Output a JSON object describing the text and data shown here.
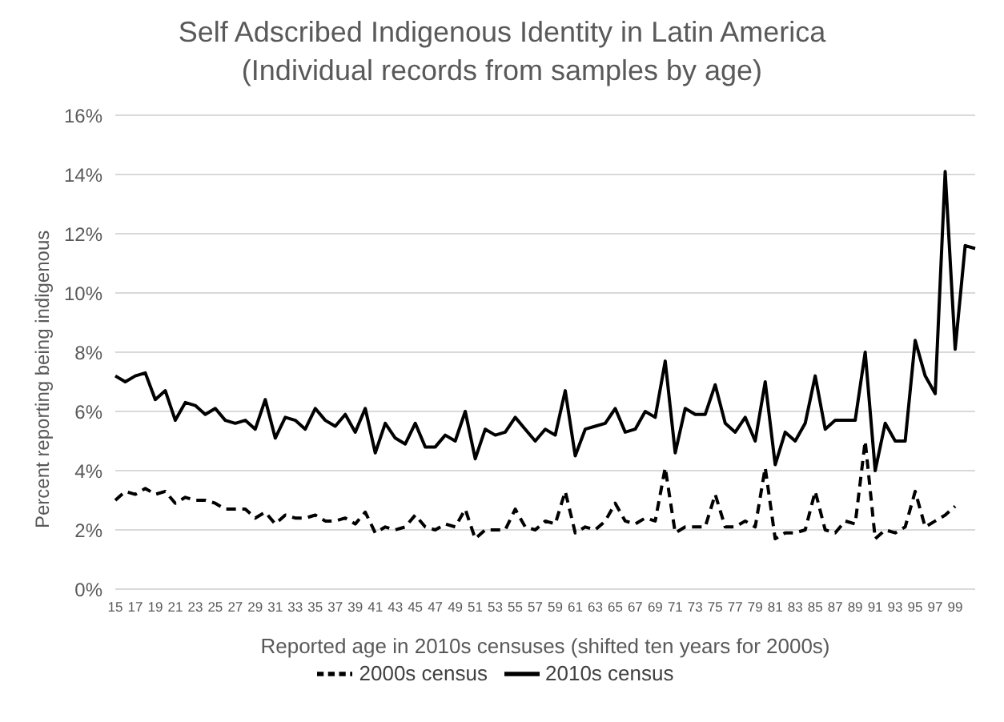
{
  "chart_data": {
    "type": "line",
    "title": "Self Adscribed Indigenous Identity in Latin America\n(Individual records from samples by age)",
    "xlabel": "Reported age in 2010s censuses (shifted ten years for 2000s)",
    "ylabel": "Percent reporting being indigenous",
    "categories": [
      "15",
      null,
      "17",
      null,
      "19",
      null,
      "21",
      null,
      "23",
      null,
      "25",
      null,
      "27",
      null,
      "29",
      null,
      "31",
      null,
      "33",
      null,
      "35",
      null,
      "37",
      null,
      "39",
      null,
      "41",
      null,
      "43",
      null,
      "45",
      null,
      "47",
      null,
      "49",
      null,
      "51",
      null,
      "53",
      null,
      "55",
      null,
      "57",
      null,
      "59",
      null,
      "61",
      null,
      "63",
      null,
      "65",
      null,
      "67",
      null,
      "69",
      null,
      "71",
      null,
      "73",
      null,
      "75",
      null,
      "77",
      null,
      "79",
      null,
      "81",
      null,
      "83",
      null,
      "85",
      null,
      "87",
      null,
      "89",
      null,
      "91",
      null,
      "93",
      null,
      "95",
      null,
      "97",
      null,
      "99",
      null,
      null
    ],
    "series": [
      {
        "name": "2000s census",
        "color": "#000000",
        "line_style": "dashed",
        "values": [
          3.0,
          3.3,
          3.2,
          3.4,
          3.2,
          3.3,
          2.9,
          3.1,
          3.0,
          3.0,
          2.9,
          2.7,
          2.7,
          2.7,
          2.4,
          2.6,
          2.2,
          2.5,
          2.4,
          2.4,
          2.5,
          2.3,
          2.3,
          2.4,
          2.2,
          2.6,
          1.9,
          2.1,
          2.0,
          2.1,
          2.5,
          2.1,
          2.0,
          2.2,
          2.1,
          2.7,
          1.7,
          2.0,
          2.0,
          2.0,
          2.7,
          2.1,
          2.0,
          2.3,
          2.2,
          3.3,
          1.9,
          2.1,
          2.0,
          2.3,
          2.9,
          2.3,
          2.2,
          2.4,
          2.3,
          4.1,
          1.9,
          2.1,
          2.1,
          2.1,
          3.2,
          2.1,
          2.1,
          2.3,
          2.1,
          4.1,
          1.7,
          1.9,
          1.9,
          2.0,
          3.3,
          2.0,
          1.9,
          2.3,
          2.2,
          5.0,
          1.7,
          2.0,
          1.9,
          2.1,
          3.3,
          2.1,
          2.3,
          2.5,
          2.8,
          null,
          null
        ]
      },
      {
        "name": "2010s census",
        "color": "#000000",
        "line_style": "solid",
        "values": [
          7.2,
          7.0,
          7.2,
          7.3,
          6.4,
          6.7,
          5.7,
          6.3,
          6.2,
          5.9,
          6.1,
          5.7,
          5.6,
          5.7,
          5.4,
          6.4,
          5.1,
          5.8,
          5.7,
          5.4,
          6.1,
          5.7,
          5.5,
          5.9,
          5.3,
          6.1,
          4.6,
          5.6,
          5.1,
          4.9,
          5.6,
          4.8,
          4.8,
          5.2,
          5.0,
          6.0,
          4.4,
          5.4,
          5.2,
          5.3,
          5.8,
          5.4,
          5.0,
          5.4,
          5.2,
          6.7,
          4.5,
          5.4,
          5.5,
          5.6,
          6.1,
          5.3,
          5.4,
          6.0,
          5.8,
          7.7,
          4.6,
          6.1,
          5.9,
          5.9,
          6.9,
          5.6,
          5.3,
          5.8,
          5.0,
          7.0,
          4.2,
          5.3,
          5.0,
          5.6,
          7.2,
          5.4,
          5.7,
          5.7,
          5.7,
          8.0,
          4.0,
          5.6,
          5.0,
          5.0,
          8.4,
          7.2,
          6.6,
          14.1,
          8.1,
          11.6,
          11.5
        ]
      }
    ],
    "ylim": [
      0,
      16
    ],
    "yticks": [
      {
        "value": 0,
        "label": "0%"
      },
      {
        "value": 2,
        "label": "2%"
      },
      {
        "value": 4,
        "label": "4%"
      },
      {
        "value": 6,
        "label": "6%"
      },
      {
        "value": 8,
        "label": "8%"
      },
      {
        "value": 10,
        "label": "10%"
      },
      {
        "value": 12,
        "label": "12%"
      },
      {
        "value": 14,
        "label": "14%"
      },
      {
        "value": 16,
        "label": "16%"
      }
    ],
    "grid": "y",
    "legend": "bottom",
    "marker": "none"
  }
}
